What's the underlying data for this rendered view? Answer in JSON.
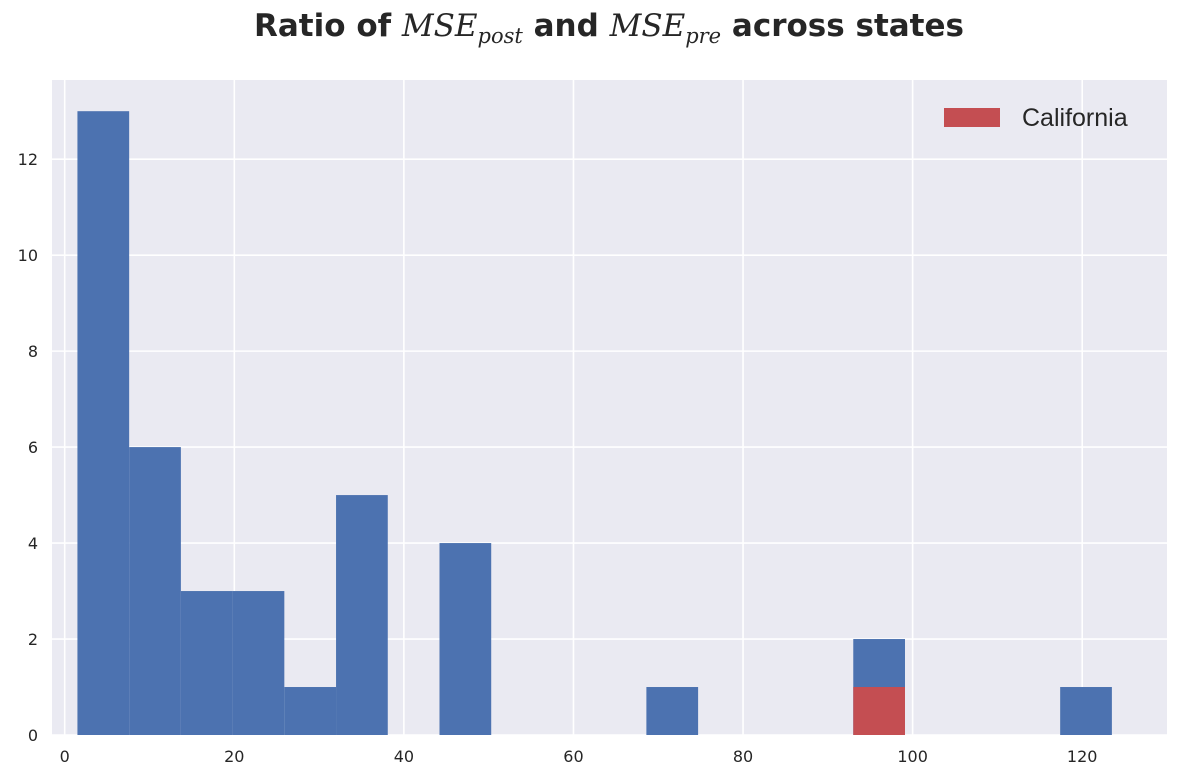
{
  "chart_data": {
    "type": "bar",
    "title": {
      "prefix": "Ratio of ",
      "term1_base": "MSE",
      "term1_sub": "post",
      "joiner": " and ",
      "term2_base": "MSE",
      "term2_sub": "pre",
      "suffix": " across states"
    },
    "xlabel": "",
    "ylabel": "",
    "xlim": [
      -1.5,
      130
    ],
    "ylim": [
      0,
      13.65
    ],
    "xticks": [
      0,
      20,
      40,
      60,
      80,
      100,
      120
    ],
    "yticks": [
      0,
      2,
      4,
      6,
      8,
      10,
      12
    ],
    "grid": true,
    "legend": {
      "placement": "top-right",
      "entries": [
        {
          "name": "California",
          "color": "#c44e52"
        }
      ]
    },
    "series": [
      {
        "color": "#4c72b0",
        "bins": [
          {
            "x0": 1.5,
            "x1": 7.6,
            "count": 13
          },
          {
            "x0": 7.6,
            "x1": 13.7,
            "count": 6
          },
          {
            "x0": 13.7,
            "x1": 19.8,
            "count": 3
          },
          {
            "x0": 19.8,
            "x1": 25.9,
            "count": 3
          },
          {
            "x0": 25.9,
            "x1": 32.0,
            "count": 1
          },
          {
            "x0": 32.0,
            "x1": 38.1,
            "count": 5
          },
          {
            "x0": 44.2,
            "x1": 50.3,
            "count": 4
          },
          {
            "x0": 68.6,
            "x1": 74.7,
            "count": 1
          },
          {
            "x0": 93.0,
            "x1": 99.1,
            "count": 2
          },
          {
            "x0": 117.4,
            "x1": 123.5,
            "count": 1
          }
        ]
      },
      {
        "name": "California",
        "color": "#c44e52",
        "bins": [
          {
            "x0": 93.0,
            "x1": 99.1,
            "count": 1
          }
        ]
      }
    ]
  }
}
